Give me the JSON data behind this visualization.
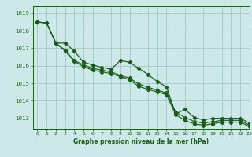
{
  "title": "Graphe pression niveau de la mer (hPa)",
  "bg_color": "#cce8e8",
  "grid_color": "#aacccc",
  "line_color": "#1a5c1a",
  "xlim": [
    -0.5,
    23
  ],
  "ylim": [
    1012.4,
    1019.4
  ],
  "yticks": [
    1013,
    1014,
    1015,
    1016,
    1017,
    1018,
    1019
  ],
  "xticks": [
    0,
    1,
    2,
    3,
    4,
    5,
    6,
    7,
    8,
    9,
    10,
    11,
    12,
    13,
    14,
    15,
    16,
    17,
    18,
    19,
    20,
    21,
    22,
    23
  ],
  "line_a": [
    1018.5,
    1018.45,
    1017.3,
    1017.3,
    1016.85,
    1016.2,
    1016.05,
    1015.9,
    1015.8,
    1016.3,
    1016.2,
    1015.85,
    1015.5,
    1015.1,
    1014.8,
    1013.25,
    1013.5,
    1013.05,
    1012.9,
    1013.0,
    1013.0,
    1013.0,
    1013.0,
    1012.72
  ],
  "line_b": [
    1018.5,
    1018.45,
    1017.3,
    1016.9,
    1016.3,
    1016.05,
    1015.85,
    1015.75,
    1015.65,
    1015.45,
    1015.3,
    1014.95,
    1014.78,
    1014.6,
    1014.45,
    1013.35,
    1013.05,
    1012.82,
    1012.72,
    1012.8,
    1012.88,
    1012.88,
    1012.88,
    1012.6
  ],
  "line_c": [
    1018.5,
    1018.45,
    1017.3,
    1016.85,
    1016.25,
    1015.95,
    1015.75,
    1015.65,
    1015.55,
    1015.38,
    1015.2,
    1014.82,
    1014.65,
    1014.5,
    1014.35,
    1013.2,
    1012.88,
    1012.68,
    1012.6,
    1012.68,
    1012.78,
    1012.78,
    1012.78,
    1012.52
  ]
}
